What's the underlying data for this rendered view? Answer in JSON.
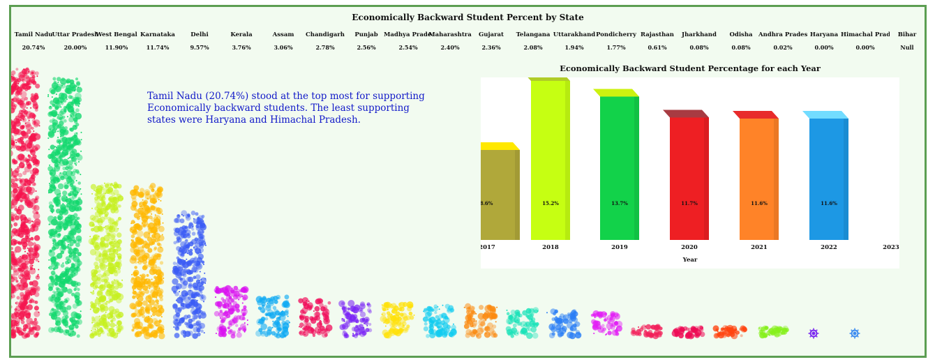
{
  "chart_data": [
    {
      "type": "bar",
      "title": "Economically Backward Student Percent by State",
      "categories": [
        "Tamil Nadu",
        "Uttar Pradesh",
        "West Bengal",
        "Karnataka",
        "Delhi",
        "Kerala",
        "Assam",
        "Chandigarh",
        "Punjab",
        "Madhya Prade..",
        "Maharashtra",
        "Gujarat",
        "Telangana",
        "Uttarakhand",
        "Pondicherry",
        "Rajasthan",
        "Jharkhand",
        "Odisha",
        "Andhra Pradesh",
        "Haryana",
        "Himachal Prad..",
        "Bihar"
      ],
      "value_labels": [
        "20.74%",
        "20.00%",
        "11.90%",
        "11.74%",
        "9.57%",
        "3.76%",
        "3.06%",
        "2.78%",
        "2.56%",
        "2.54%",
        "2.40%",
        "2.36%",
        "2.08%",
        "1.94%",
        "1.77%",
        "0.61%",
        "0.08%",
        "0.08%",
        "0.02%",
        "0.00%",
        "0.00%",
        "Null"
      ],
      "values": [
        20.74,
        20.0,
        11.9,
        11.74,
        9.57,
        3.76,
        3.06,
        2.78,
        2.56,
        2.54,
        2.4,
        2.36,
        2.08,
        1.94,
        1.77,
        0.61,
        0.08,
        0.08,
        0.02,
        0.0,
        0.0,
        null
      ],
      "colors": [
        "#f5144e",
        "#13d86e",
        "#c6f01f",
        "#ffb802",
        "#3b5cf5",
        "#d90ff0",
        "#10aaf3",
        "#f00d5b",
        "#7a25f5",
        "#ffe10a",
        "#12ccf0",
        "#fb8a11",
        "#18e2b8",
        "#2a7ef5",
        "#e21cf5",
        "#f2205a",
        "#ee0b55",
        "#ff4410",
        "#86f01c",
        "#7a28f0",
        "#3d8cf0"
      ]
    },
    {
      "type": "bar",
      "title": "Economically Backward Student Percentage for each Year",
      "xlabel": "Year",
      "ylabel": "",
      "categories": [
        "2017",
        "2018",
        "2019",
        "2020",
        "2021",
        "2022",
        "2023"
      ],
      "values": [
        8.6,
        15.2,
        13.7,
        11.7,
        11.6,
        11.6,
        null
      ],
      "value_labels": [
        "8.6%",
        "15.2%",
        "13.7%",
        "11.7%",
        "11.6%",
        "11.6%",
        ""
      ],
      "colors": [
        "#b0a83a",
        "#c6ff12",
        "#12d24a",
        "#ee1f23",
        "#ff8328",
        "#1d98e4",
        ""
      ],
      "top_colors": [
        "#ffe800",
        "#b0cc28",
        "#ccf210",
        "#a83b42",
        "#e82b2b",
        "#72dcff",
        ""
      ]
    }
  ],
  "annotation": "Tamil Nadu (20.74%) stood at the top most for supporting Economically backward students. The least supporting states were Haryana and Himachal Pradesh."
}
